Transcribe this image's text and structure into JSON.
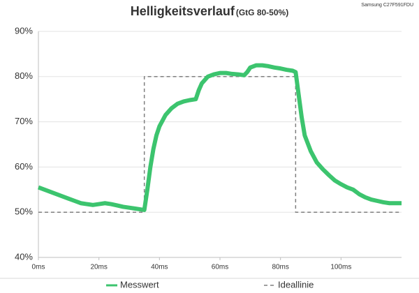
{
  "chart_data": {
    "type": "line",
    "title": "Helligkeitsverlauf",
    "subtitle": "(GtG 80-50%)",
    "annotation": "Samsung C27F591FDU",
    "xlim": [
      0,
      120
    ],
    "xticks": [
      {
        "value": 0,
        "label": "0ms"
      },
      {
        "value": 20,
        "label": "20ms"
      },
      {
        "value": 40,
        "label": "40ms"
      },
      {
        "value": 60,
        "label": "60ms"
      },
      {
        "value": 80,
        "label": "80ms"
      },
      {
        "value": 100,
        "label": "100ms"
      }
    ],
    "ylim": [
      40,
      90
    ],
    "yticks": [
      {
        "value": 40,
        "label": "40%"
      },
      {
        "value": 50,
        "label": "50%"
      },
      {
        "value": 60,
        "label": "60%"
      },
      {
        "value": 70,
        "label": "70%"
      },
      {
        "value": 80,
        "label": "80%"
      },
      {
        "value": 90,
        "label": "90%"
      }
    ],
    "grid": true,
    "legend": "bottom",
    "series": [
      {
        "name": "Messwert",
        "color": "#3cc46e",
        "style": "solid",
        "x": [
          0,
          2,
          4,
          6,
          8,
          10,
          12,
          14,
          16,
          18,
          20,
          22,
          24,
          26,
          28,
          30,
          32,
          34,
          35,
          36,
          37,
          38,
          39,
          40,
          42,
          44,
          46,
          48,
          50,
          52,
          53,
          54,
          56,
          58,
          60,
          62,
          64,
          66,
          68,
          69,
          70,
          72,
          74,
          76,
          78,
          80,
          82,
          84,
          85,
          86,
          87,
          88,
          90,
          92,
          94,
          96,
          98,
          100,
          102,
          104,
          106,
          108,
          110,
          112,
          114,
          116,
          118,
          120
        ],
        "values": [
          55.5,
          55,
          54.5,
          54,
          53.5,
          53,
          52.5,
          52,
          51.8,
          51.6,
          51.8,
          52,
          51.8,
          51.5,
          51.2,
          51,
          50.8,
          50.6,
          50.5,
          55,
          60,
          64,
          67,
          69,
          71.5,
          73,
          74,
          74.5,
          74.8,
          75,
          77,
          78.5,
          80,
          80.5,
          80.8,
          80.8,
          80.6,
          80.5,
          80.3,
          81,
          82,
          82.5,
          82.5,
          82.3,
          82,
          81.8,
          81.5,
          81.3,
          81,
          76,
          71,
          67,
          63.5,
          61,
          59.5,
          58.2,
          57,
          56.2,
          55.5,
          55,
          54,
          53.3,
          52.8,
          52.5,
          52.2,
          52,
          52,
          52
        ]
      },
      {
        "name": "Ideallinie",
        "color": "#7f7f7f",
        "style": "dashed",
        "x": [
          0,
          35,
          35,
          85,
          85,
          120
        ],
        "values": [
          50,
          50,
          80,
          80,
          50,
          50
        ]
      }
    ]
  }
}
